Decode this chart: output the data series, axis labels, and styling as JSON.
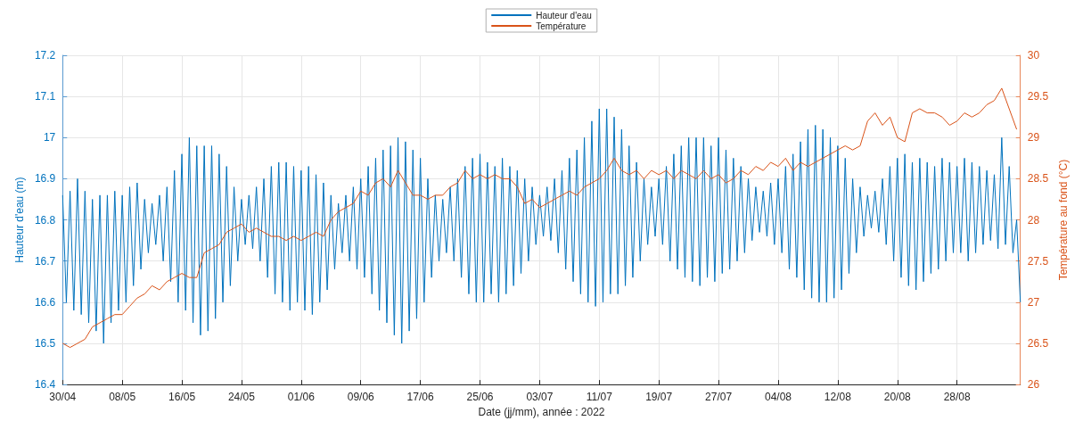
{
  "chart_data": {
    "type": "line",
    "xlabel": "Date (jj/mm), année : 2022",
    "ylabel": "Hauteur d'eau (m)",
    "y2label": "Température au fond (°C)",
    "xlim": [
      "2022-04-30T00:00",
      "2022-09-05T12:00"
    ],
    "xticks": [
      {
        "value": "2022-04-30",
        "label": "30/04"
      },
      {
        "value": "2022-05-08",
        "label": "08/05"
      },
      {
        "value": "2022-05-16",
        "label": "16/05"
      },
      {
        "value": "2022-05-24",
        "label": "24/05"
      },
      {
        "value": "2022-06-01",
        "label": "01/06"
      },
      {
        "value": "2022-06-09",
        "label": "09/06"
      },
      {
        "value": "2022-06-17",
        "label": "17/06"
      },
      {
        "value": "2022-06-25",
        "label": "25/06"
      },
      {
        "value": "2022-07-03",
        "label": "03/07"
      },
      {
        "value": "2022-07-11",
        "label": "11/07"
      },
      {
        "value": "2022-07-19",
        "label": "19/07"
      },
      {
        "value": "2022-07-27",
        "label": "27/07"
      },
      {
        "value": "2022-08-04",
        "label": "04/08"
      },
      {
        "value": "2022-08-12",
        "label": "12/08"
      },
      {
        "value": "2022-08-20",
        "label": "20/08"
      },
      {
        "value": "2022-08-28",
        "label": "28/08"
      }
    ],
    "ylim": [
      16.4,
      17.2
    ],
    "yticks": [
      16.4,
      16.5,
      16.6,
      16.7,
      16.8,
      16.9,
      17,
      17.1,
      17.2
    ],
    "y2lim": [
      26,
      30
    ],
    "y2ticks": [
      26,
      26.5,
      27,
      27.5,
      28,
      28.5,
      29,
      29.5,
      30
    ],
    "grid": true,
    "legend": "top",
    "marker": "none",
    "line_style": "solid",
    "series": [
      {
        "name": "Hauteur d'eau",
        "color": "#0072bd",
        "x": [
          "2022-04-30",
          "2022-04-30T12:00",
          "2022-05-01",
          "2022-05-01T12:00",
          "2022-05-02",
          "2022-05-02T12:00",
          "2022-05-03",
          "2022-05-03T12:00",
          "2022-05-04",
          "2022-05-04T12:00",
          "2022-05-05",
          "2022-05-05T12:00",
          "2022-05-06",
          "2022-05-06T12:00",
          "2022-05-07",
          "2022-05-07T12:00",
          "2022-05-08",
          "2022-05-08T12:00",
          "2022-05-09",
          "2022-05-09T12:00",
          "2022-05-10",
          "2022-05-10T12:00",
          "2022-05-11",
          "2022-05-11T12:00",
          "2022-05-12",
          "2022-05-12T12:00",
          "2022-05-13",
          "2022-05-13T12:00",
          "2022-05-14",
          "2022-05-14T12:00",
          "2022-05-15",
          "2022-05-15T12:00",
          "2022-05-16",
          "2022-05-16T12:00",
          "2022-05-17",
          "2022-05-17T12:00",
          "2022-05-18",
          "2022-05-18T12:00",
          "2022-05-19",
          "2022-05-19T12:00",
          "2022-05-20",
          "2022-05-20T12:00",
          "2022-05-21",
          "2022-05-21T12:00",
          "2022-05-22",
          "2022-05-22T12:00",
          "2022-05-23",
          "2022-05-23T12:00",
          "2022-05-24",
          "2022-05-24T12:00",
          "2022-05-25",
          "2022-05-25T12:00",
          "2022-05-26",
          "2022-05-26T12:00",
          "2022-05-27",
          "2022-05-27T12:00",
          "2022-05-28",
          "2022-05-28T12:00",
          "2022-05-29",
          "2022-05-29T12:00",
          "2022-05-30",
          "2022-05-30T12:00",
          "2022-05-31",
          "2022-05-31T12:00",
          "2022-06-01",
          "2022-06-01T12:00",
          "2022-06-02",
          "2022-06-02T12:00",
          "2022-06-03",
          "2022-06-03T12:00",
          "2022-06-04",
          "2022-06-04T12:00",
          "2022-06-05",
          "2022-06-05T12:00",
          "2022-06-06",
          "2022-06-06T12:00",
          "2022-06-07",
          "2022-06-07T12:00",
          "2022-06-08",
          "2022-06-08T12:00",
          "2022-06-09",
          "2022-06-09T12:00",
          "2022-06-10",
          "2022-06-10T12:00",
          "2022-06-11",
          "2022-06-11T12:00",
          "2022-06-12",
          "2022-06-12T12:00",
          "2022-06-13",
          "2022-06-13T12:00",
          "2022-06-14",
          "2022-06-14T12:00",
          "2022-06-15",
          "2022-06-15T12:00",
          "2022-06-16",
          "2022-06-16T12:00",
          "2022-06-17",
          "2022-06-17T12:00",
          "2022-06-18",
          "2022-06-18T12:00",
          "2022-06-19",
          "2022-06-19T12:00",
          "2022-06-20",
          "2022-06-20T12:00",
          "2022-06-21",
          "2022-06-21T12:00",
          "2022-06-22",
          "2022-06-22T12:00",
          "2022-06-23",
          "2022-06-23T12:00",
          "2022-06-24",
          "2022-06-24T12:00",
          "2022-06-25",
          "2022-06-25T12:00",
          "2022-06-26",
          "2022-06-26T12:00",
          "2022-06-27",
          "2022-06-27T12:00",
          "2022-06-28",
          "2022-06-28T12:00",
          "2022-06-29",
          "2022-06-29T12:00",
          "2022-06-30",
          "2022-06-30T12:00",
          "2022-07-01",
          "2022-07-01T12:00",
          "2022-07-02",
          "2022-07-02T12:00",
          "2022-07-03",
          "2022-07-03T12:00",
          "2022-07-04",
          "2022-07-04T12:00",
          "2022-07-05",
          "2022-07-05T12:00",
          "2022-07-06",
          "2022-07-06T12:00",
          "2022-07-07",
          "2022-07-07T12:00",
          "2022-07-08",
          "2022-07-08T12:00",
          "2022-07-09",
          "2022-07-09T12:00",
          "2022-07-10",
          "2022-07-10T12:00",
          "2022-07-11",
          "2022-07-11T12:00",
          "2022-07-12",
          "2022-07-12T12:00",
          "2022-07-13",
          "2022-07-13T12:00",
          "2022-07-14",
          "2022-07-14T12:00",
          "2022-07-15",
          "2022-07-15T12:00",
          "2022-07-16",
          "2022-07-16T12:00",
          "2022-07-17",
          "2022-07-17T12:00",
          "2022-07-18",
          "2022-07-18T12:00",
          "2022-07-19",
          "2022-07-19T12:00",
          "2022-07-20",
          "2022-07-20T12:00",
          "2022-07-21",
          "2022-07-21T12:00",
          "2022-07-22",
          "2022-07-22T12:00",
          "2022-07-23",
          "2022-07-23T12:00",
          "2022-07-24",
          "2022-07-24T12:00",
          "2022-07-25",
          "2022-07-25T12:00",
          "2022-07-26",
          "2022-07-26T12:00",
          "2022-07-27",
          "2022-07-27T12:00",
          "2022-07-28",
          "2022-07-28T12:00",
          "2022-07-29",
          "2022-07-29T12:00",
          "2022-07-30",
          "2022-07-30T12:00",
          "2022-07-31",
          "2022-07-31T12:00",
          "2022-08-01",
          "2022-08-01T12:00",
          "2022-08-02",
          "2022-08-02T12:00",
          "2022-08-03",
          "2022-08-03T12:00",
          "2022-08-04",
          "2022-08-04T12:00",
          "2022-08-05",
          "2022-08-05T12:00",
          "2022-08-06",
          "2022-08-06T12:00",
          "2022-08-07",
          "2022-08-07T12:00",
          "2022-08-08",
          "2022-08-08T12:00",
          "2022-08-09",
          "2022-08-09T12:00",
          "2022-08-10",
          "2022-08-10T12:00",
          "2022-08-11",
          "2022-08-11T12:00",
          "2022-08-12",
          "2022-08-12T12:00",
          "2022-08-13",
          "2022-08-13T12:00",
          "2022-08-14",
          "2022-08-14T12:00",
          "2022-08-15",
          "2022-08-15T12:00",
          "2022-08-16",
          "2022-08-16T12:00",
          "2022-08-17",
          "2022-08-17T12:00",
          "2022-08-18",
          "2022-08-18T12:00",
          "2022-08-19",
          "2022-08-19T12:00",
          "2022-08-20",
          "2022-08-20T12:00",
          "2022-08-21",
          "2022-08-21T12:00",
          "2022-08-22",
          "2022-08-22T12:00",
          "2022-08-23",
          "2022-08-23T12:00",
          "2022-08-24",
          "2022-08-24T12:00",
          "2022-08-25",
          "2022-08-25T12:00",
          "2022-08-26",
          "2022-08-26T12:00",
          "2022-08-27",
          "2022-08-27T12:00",
          "2022-08-28",
          "2022-08-28T12:00",
          "2022-08-29",
          "2022-08-29T12:00",
          "2022-08-30",
          "2022-08-30T12:00",
          "2022-08-31",
          "2022-08-31T12:00",
          "2022-09-01",
          "2022-09-01T12:00",
          "2022-09-02",
          "2022-09-02T12:00",
          "2022-09-03",
          "2022-09-03T12:00",
          "2022-09-04",
          "2022-09-04T12:00",
          "2022-09-05",
          "2022-09-05T12:00"
        ],
        "values": [
          16.86,
          16.6,
          16.87,
          16.58,
          16.9,
          16.57,
          16.87,
          16.55,
          16.85,
          16.53,
          16.86,
          16.5,
          16.86,
          16.55,
          16.87,
          16.58,
          16.86,
          16.6,
          16.88,
          16.64,
          16.89,
          16.68,
          16.85,
          16.72,
          16.84,
          16.74,
          16.86,
          16.7,
          16.88,
          16.65,
          16.92,
          16.6,
          16.96,
          16.58,
          17.0,
          16.55,
          16.98,
          16.52,
          16.98,
          16.53,
          16.98,
          16.56,
          16.96,
          16.6,
          16.93,
          16.64,
          16.88,
          16.7,
          16.85,
          16.74,
          16.86,
          16.73,
          16.88,
          16.7,
          16.9,
          16.66,
          16.93,
          16.62,
          16.94,
          16.6,
          16.94,
          16.58,
          16.93,
          16.6,
          16.92,
          16.58,
          16.93,
          16.57,
          16.91,
          16.6,
          16.89,
          16.63,
          16.86,
          16.68,
          16.84,
          16.72,
          16.86,
          16.7,
          16.88,
          16.68,
          16.9,
          16.66,
          16.93,
          16.62,
          16.95,
          16.58,
          16.97,
          16.55,
          16.98,
          16.52,
          17.0,
          16.5,
          16.99,
          16.53,
          16.97,
          16.56,
          16.95,
          16.6,
          16.9,
          16.66,
          16.86,
          16.7,
          16.85,
          16.72,
          16.88,
          16.7,
          16.9,
          16.66,
          16.93,
          16.62,
          16.95,
          16.6,
          16.96,
          16.6,
          16.94,
          16.62,
          16.93,
          16.6,
          16.95,
          16.62,
          16.93,
          16.64,
          16.92,
          16.67,
          16.9,
          16.7,
          16.88,
          16.74,
          16.86,
          16.76,
          16.88,
          16.75,
          16.9,
          16.72,
          16.92,
          16.68,
          16.95,
          16.65,
          16.97,
          16.62,
          17.0,
          16.6,
          17.04,
          16.59,
          17.07,
          16.6,
          17.07,
          16.62,
          17.05,
          16.62,
          17.02,
          16.64,
          16.98,
          16.66,
          16.94,
          16.7,
          16.9,
          16.74,
          16.88,
          16.76,
          16.9,
          16.74,
          16.93,
          16.7,
          16.96,
          16.68,
          16.98,
          16.66,
          17.0,
          16.65,
          17.0,
          16.64,
          17.0,
          16.66,
          16.98,
          16.65,
          17.0,
          16.67,
          16.97,
          16.68,
          16.95,
          16.7,
          16.93,
          16.72,
          16.9,
          16.75,
          16.88,
          16.77,
          16.87,
          16.76,
          16.89,
          16.74,
          16.9,
          16.72,
          16.93,
          16.68,
          16.96,
          16.66,
          16.99,
          16.63,
          17.02,
          16.61,
          17.03,
          16.6,
          17.02,
          16.6,
          17.0,
          16.61,
          16.98,
          16.63,
          16.95,
          16.67,
          16.9,
          16.72,
          16.88,
          16.76,
          16.86,
          16.78,
          16.87,
          16.77,
          16.9,
          16.74,
          16.93,
          16.7,
          16.95,
          16.66,
          16.96,
          16.64,
          16.94,
          16.63,
          16.95,
          16.65,
          16.94,
          16.67,
          16.93,
          16.68,
          16.95,
          16.7,
          16.94,
          16.72,
          16.93,
          16.72,
          16.95,
          16.7,
          16.94,
          16.72,
          16.93,
          16.74,
          16.92,
          16.75,
          16.91,
          16.73,
          17.0,
          16.74,
          16.93,
          16.72,
          16.8,
          16.6
        ]
      },
      {
        "name": "Température",
        "color": "#d95319",
        "axis": "y2",
        "x": [
          "2022-04-30",
          "2022-05-01",
          "2022-05-02",
          "2022-05-03",
          "2022-05-04",
          "2022-05-05",
          "2022-05-06",
          "2022-05-07",
          "2022-05-08",
          "2022-05-09",
          "2022-05-10",
          "2022-05-11",
          "2022-05-12",
          "2022-05-13",
          "2022-05-14",
          "2022-05-15",
          "2022-05-16",
          "2022-05-17",
          "2022-05-18",
          "2022-05-19",
          "2022-05-20",
          "2022-05-21",
          "2022-05-22",
          "2022-05-23",
          "2022-05-24",
          "2022-05-25",
          "2022-05-26",
          "2022-05-27",
          "2022-05-28",
          "2022-05-29",
          "2022-05-30",
          "2022-05-31",
          "2022-06-01",
          "2022-06-02",
          "2022-06-03",
          "2022-06-04",
          "2022-06-05",
          "2022-06-06",
          "2022-06-07",
          "2022-06-08",
          "2022-06-09",
          "2022-06-10",
          "2022-06-11",
          "2022-06-12",
          "2022-06-13",
          "2022-06-14",
          "2022-06-15",
          "2022-06-16",
          "2022-06-17",
          "2022-06-18",
          "2022-06-19",
          "2022-06-20",
          "2022-06-21",
          "2022-06-22",
          "2022-06-23",
          "2022-06-24",
          "2022-06-25",
          "2022-06-26",
          "2022-06-27",
          "2022-06-28",
          "2022-06-29",
          "2022-06-30",
          "2022-07-01",
          "2022-07-02",
          "2022-07-03",
          "2022-07-04",
          "2022-07-05",
          "2022-07-06",
          "2022-07-07",
          "2022-07-08",
          "2022-07-09",
          "2022-07-10",
          "2022-07-11",
          "2022-07-12",
          "2022-07-13",
          "2022-07-14",
          "2022-07-15",
          "2022-07-16",
          "2022-07-17",
          "2022-07-18",
          "2022-07-19",
          "2022-07-20",
          "2022-07-21",
          "2022-07-22",
          "2022-07-23",
          "2022-07-24",
          "2022-07-25",
          "2022-07-26",
          "2022-07-27",
          "2022-07-28",
          "2022-07-29",
          "2022-07-30",
          "2022-07-31",
          "2022-08-01",
          "2022-08-02",
          "2022-08-03",
          "2022-08-04",
          "2022-08-05",
          "2022-08-06",
          "2022-08-07",
          "2022-08-08",
          "2022-08-09",
          "2022-08-10",
          "2022-08-11",
          "2022-08-12",
          "2022-08-13",
          "2022-08-14",
          "2022-08-15",
          "2022-08-16",
          "2022-08-17",
          "2022-08-18",
          "2022-08-19",
          "2022-08-20",
          "2022-08-21",
          "2022-08-22",
          "2022-08-23",
          "2022-08-24",
          "2022-08-25",
          "2022-08-26",
          "2022-08-27",
          "2022-08-28",
          "2022-08-29",
          "2022-08-30",
          "2022-08-31",
          "2022-09-01",
          "2022-09-02",
          "2022-09-03",
          "2022-09-04",
          "2022-09-05"
        ],
        "values": [
          26.5,
          26.45,
          26.5,
          26.55,
          26.7,
          26.75,
          26.8,
          26.85,
          26.85,
          26.95,
          27.05,
          27.1,
          27.2,
          27.15,
          27.25,
          27.3,
          27.35,
          27.3,
          27.3,
          27.6,
          27.65,
          27.7,
          27.85,
          27.9,
          27.95,
          27.85,
          27.9,
          27.85,
          27.8,
          27.8,
          27.75,
          27.8,
          27.75,
          27.8,
          27.85,
          27.8,
          28.0,
          28.1,
          28.15,
          28.2,
          28.35,
          28.3,
          28.45,
          28.5,
          28.4,
          28.6,
          28.45,
          28.3,
          28.3,
          28.25,
          28.3,
          28.3,
          28.4,
          28.45,
          28.6,
          28.5,
          28.55,
          28.5,
          28.55,
          28.5,
          28.5,
          28.4,
          28.2,
          28.25,
          28.15,
          28.2,
          28.25,
          28.3,
          28.35,
          28.3,
          28.4,
          28.45,
          28.5,
          28.6,
          28.75,
          28.6,
          28.55,
          28.6,
          28.5,
          28.6,
          28.55,
          28.6,
          28.5,
          28.6,
          28.55,
          28.5,
          28.6,
          28.5,
          28.55,
          28.45,
          28.5,
          28.6,
          28.55,
          28.65,
          28.6,
          28.7,
          28.65,
          28.75,
          28.6,
          28.7,
          28.65,
          28.7,
          28.75,
          28.8,
          28.85,
          28.9,
          28.85,
          28.9,
          29.2,
          29.3,
          29.15,
          29.25,
          29.0,
          28.95,
          29.3,
          29.35,
          29.3,
          29.3,
          29.25,
          29.15,
          29.2,
          29.3,
          29.25,
          29.3,
          29.4,
          29.45,
          29.6,
          29.35,
          29.1
        ]
      }
    ]
  }
}
